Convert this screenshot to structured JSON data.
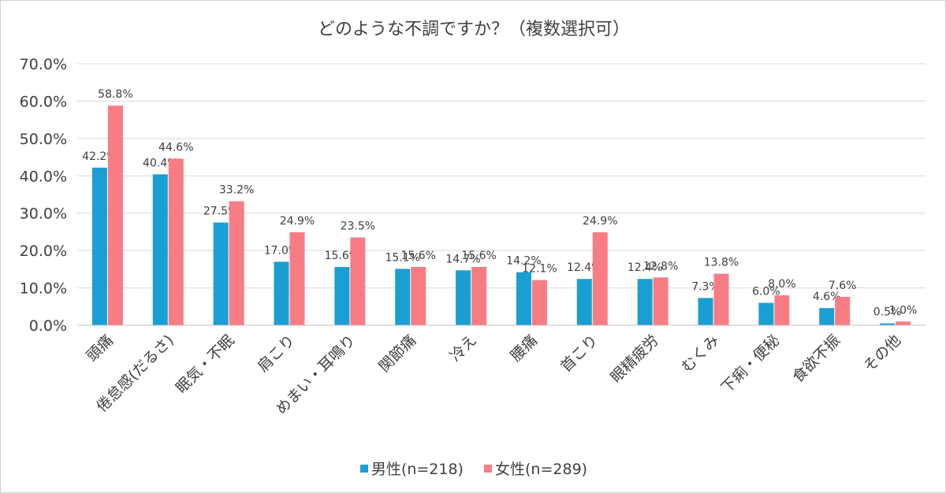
{
  "chart_data": {
    "type": "bar",
    "title": "どのような不調ですか？（複数選択可）",
    "categories": [
      "頭痛",
      "倦怠感(だるさ)",
      "眠気・不眠",
      "肩こり",
      "めまい・耳鳴り",
      "関節痛",
      "冷え",
      "腰痛",
      "首こり",
      "眼精疲労",
      "むくみ",
      "下痢・便秘",
      "食欲不振",
      "その他"
    ],
    "series": [
      {
        "name": "男性(n=218)",
        "color": "#1a9fd4",
        "values": [
          42.2,
          40.4,
          27.5,
          17.0,
          15.6,
          15.1,
          14.7,
          14.2,
          12.4,
          12.4,
          7.3,
          6.0,
          4.6,
          0.5
        ],
        "labels": [
          "42.2%",
          "40.4%",
          "27.5%",
          "17.0%",
          "15.6%",
          "15.1%",
          "14.7%",
          "14.2%",
          "12.4%",
          "12.4%",
          "7.3%",
          "6.0%",
          "4.6%",
          "0.5%"
        ]
      },
      {
        "name": "女性(n=289)",
        "color": "#f87c84",
        "values": [
          58.8,
          44.6,
          33.2,
          24.9,
          23.5,
          15.6,
          15.6,
          12.1,
          24.9,
          12.8,
          13.8,
          8.0,
          7.6,
          1.0
        ],
        "labels": [
          "58.8%",
          "44.6%",
          "33.2%",
          "24.9%",
          "23.5%",
          "15.6%",
          "15.6%",
          "12.1%",
          "24.9%",
          "12.8%",
          "13.8%",
          "8.0%",
          "7.6%",
          "1.0%"
        ]
      }
    ],
    "ylim": [
      0,
      70
    ],
    "yticks": [
      0,
      10,
      20,
      30,
      40,
      50,
      60,
      70
    ],
    "ytick_labels": [
      "0.0%",
      "10.0%",
      "20.0%",
      "30.0%",
      "40.0%",
      "50.0%",
      "60.0%",
      "70.0%"
    ],
    "grid": true,
    "legend_position": "bottom"
  }
}
